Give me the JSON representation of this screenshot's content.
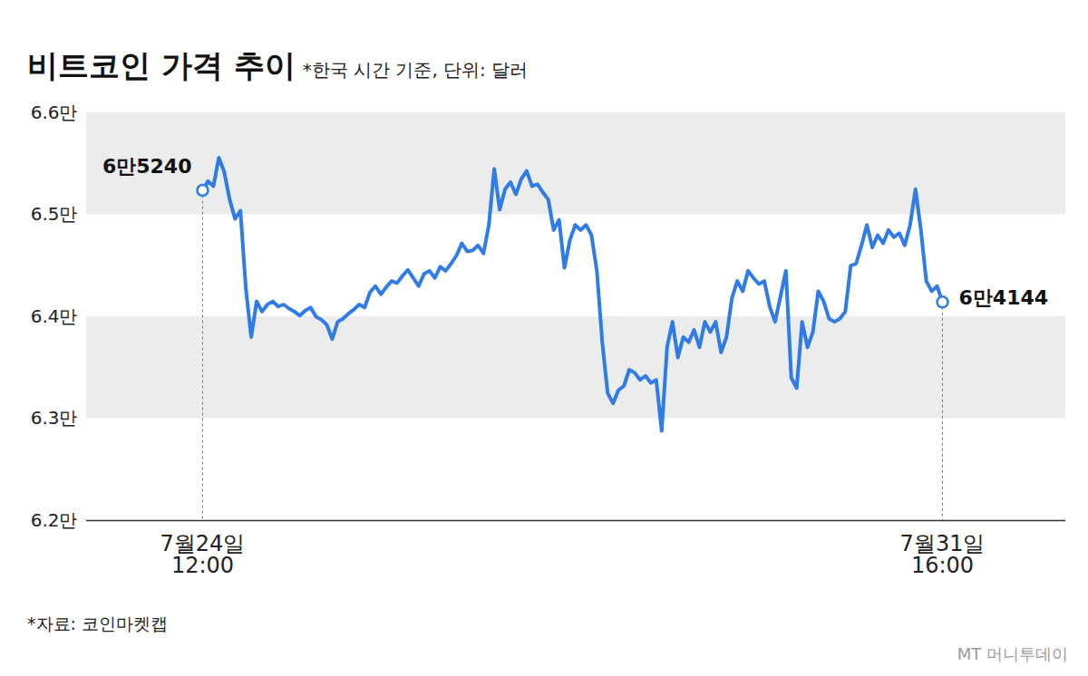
{
  "chart_data": {
    "type": "line",
    "title": "비트코인 가격 추이",
    "subtitle": "*한국 시간 기준, 단위: 달러",
    "source": "*자료: 코인마켓캡",
    "credit": "MT 머니투데이",
    "color": "#2f7be8",
    "grid": true,
    "ylim": [
      62000,
      66000
    ],
    "yticks": [
      {
        "value": 62000,
        "label": "6.2만"
      },
      {
        "value": 63000,
        "label": "6.3만"
      },
      {
        "value": 64000,
        "label": "6.4만"
      },
      {
        "value": 65000,
        "label": "6.5만"
      },
      {
        "value": 66000,
        "label": "6.6만"
      }
    ],
    "categories": [
      "7월24일\n12:00",
      null,
      null,
      null,
      null,
      null,
      null,
      null,
      null,
      null,
      null,
      null,
      null,
      null,
      null,
      null,
      null,
      null,
      null,
      null,
      null,
      null,
      null,
      null,
      null,
      null,
      null,
      null,
      null,
      null,
      null,
      null,
      null,
      null,
      null,
      null,
      null,
      null,
      null,
      null,
      null,
      null,
      null,
      null,
      null,
      null,
      null,
      null,
      null,
      null,
      null,
      null,
      null,
      null,
      null,
      null,
      null,
      null,
      null,
      null,
      null,
      null,
      null,
      null,
      null,
      null,
      null,
      null,
      null,
      null,
      null,
      null,
      null,
      null,
      null,
      null,
      null,
      null,
      null,
      null,
      null,
      null,
      null,
      null,
      null,
      null,
      null,
      null,
      null,
      null,
      null,
      null,
      null,
      null,
      null,
      null,
      null,
      null,
      null,
      null,
      null,
      null,
      null,
      null,
      null,
      null,
      null,
      null,
      null,
      null,
      null,
      null,
      null,
      null,
      null,
      null,
      null,
      null,
      null,
      null,
      null,
      null,
      null,
      null,
      null,
      null,
      null,
      null,
      null,
      null,
      null,
      null,
      null,
      null,
      null,
      null,
      null,
      "7월31일\n16:00"
    ],
    "values": [
      65240,
      65330,
      65280,
      65560,
      65420,
      65150,
      64960,
      65040,
      64280,
      63800,
      64150,
      64050,
      64120,
      64150,
      64100,
      64120,
      64080,
      64050,
      64010,
      64060,
      64090,
      64000,
      63970,
      63920,
      63780,
      63950,
      63980,
      64030,
      64070,
      64120,
      64090,
      64240,
      64300,
      64220,
      64290,
      64350,
      64330,
      64400,
      64460,
      64380,
      64300,
      64420,
      64450,
      64380,
      64490,
      64450,
      64520,
      64600,
      64720,
      64640,
      64650,
      64700,
      64620,
      64900,
      65450,
      65050,
      65250,
      65320,
      65200,
      65350,
      65430,
      65280,
      65300,
      65220,
      65150,
      64850,
      64950,
      64480,
      64750,
      64900,
      64850,
      64900,
      64800,
      64450,
      63750,
      63250,
      63150,
      63280,
      63320,
      63480,
      63450,
      63380,
      63420,
      63350,
      63380,
      62880,
      63700,
      63950,
      63600,
      63800,
      63750,
      63870,
      63700,
      63950,
      63850,
      63950,
      63650,
      63800,
      64180,
      64350,
      64250,
      64450,
      64380,
      64320,
      64350,
      64100,
      63950,
      64200,
      64450,
      63400,
      63300,
      63950,
      63700,
      63850,
      64250,
      64150,
      63980,
      63950,
      63980,
      64050,
      64500,
      64520,
      64700,
      64900,
      64680,
      64800,
      64720,
      64850,
      64780,
      64820,
      64700,
      64900,
      65250,
      64850,
      64350,
      64250,
      64300,
      64144
    ],
    "annotations": [
      {
        "index": 0,
        "value": 65240,
        "text": "6만5240"
      },
      {
        "index": 137,
        "value": 64144,
        "text": "6만4144"
      }
    ]
  }
}
